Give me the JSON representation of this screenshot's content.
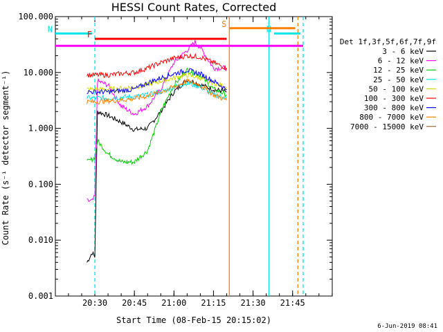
{
  "chart_data": {
    "type": "line",
    "title": "HESSI Count Rates, Corrected",
    "xlabel": "Start Time (08-Feb-15 20:15:02)",
    "ylabel": "Count Rate (s⁻¹ detector segment⁻¹)",
    "yscale": "log",
    "ylim": [
      0.001,
      100
    ],
    "xlim_minutes": [
      20.25,
      22.0
    ],
    "x_ticks": [
      "20:30",
      "20:45",
      "21:00",
      "21:15",
      "21:30",
      "21:45"
    ],
    "y_ticks": [
      "0.001",
      "0.010",
      "0.100",
      "1.000",
      "10.000",
      "100.000"
    ],
    "legend_title": "Det 1f,3f,5f,6f,7f,9f",
    "legend_position": "right",
    "timestamp": "6-Jun-2019 08:41",
    "series": [
      {
        "name": "3 - 6 keV",
        "color": "#000000",
        "x": [
          "20:27",
          "20:29",
          "20:30",
          "20:31",
          "20:35",
          "20:40",
          "20:45",
          "20:50",
          "20:55",
          "21:00",
          "21:05",
          "21:10",
          "21:15",
          "21:20"
        ],
        "values": [
          0.004,
          0.006,
          0.005,
          2.0,
          1.7,
          1.3,
          0.95,
          1.0,
          2.0,
          4.5,
          7.5,
          6.0,
          5.0,
          4.5
        ]
      },
      {
        "name": "6 - 12 keV",
        "color": "#ff00ff",
        "x": [
          "20:27",
          "20:29",
          "20:30",
          "20:31",
          "20:35",
          "20:40",
          "20:45",
          "20:50",
          "20:55",
          "21:00",
          "21:05",
          "21:08",
          "21:10",
          "21:15",
          "21:20"
        ],
        "values": [
          0.05,
          0.05,
          0.06,
          7.0,
          6.0,
          2.5,
          1.8,
          2.5,
          5.0,
          15.0,
          25.0,
          35.0,
          28.0,
          12.0,
          12.0
        ]
      },
      {
        "name": "12 - 25 keV",
        "color": "#00cc00",
        "x": [
          "20:27",
          "20:29",
          "20:30",
          "20:31",
          "20:35",
          "20:40",
          "20:45",
          "20:50",
          "20:53",
          "20:55",
          "21:00",
          "21:05",
          "21:10",
          "21:15",
          "21:20"
        ],
        "values": [
          0.25,
          0.28,
          0.3,
          0.6,
          0.35,
          0.25,
          0.25,
          0.4,
          1.0,
          2.0,
          6.0,
          11.0,
          9.0,
          5.0,
          4.0
        ]
      },
      {
        "name": "25 - 50 keV",
        "color": "#00e5e5",
        "x": [
          "20:27",
          "20:29",
          "20:30",
          "20:31",
          "20:35",
          "20:40",
          "20:45",
          "20:50",
          "20:55",
          "21:00",
          "21:05",
          "21:10",
          "21:15",
          "21:20"
        ],
        "values": [
          3.5,
          3.5,
          3.5,
          3.5,
          3.5,
          3.6,
          3.7,
          4.0,
          4.5,
          5.5,
          6.5,
          5.5,
          4.0,
          3.5
        ]
      },
      {
        "name": "50 - 100 keV",
        "color": "#d8d800",
        "x": [
          "20:27",
          "20:29",
          "20:30",
          "20:31",
          "20:35",
          "20:40",
          "20:45",
          "20:50",
          "20:55",
          "21:00",
          "21:05",
          "21:10",
          "21:15",
          "21:20"
        ],
        "values": [
          5.0,
          5.0,
          5.0,
          5.0,
          5.0,
          5.2,
          5.5,
          6.0,
          7.0,
          8.0,
          9.0,
          8.0,
          6.5,
          5.5
        ]
      },
      {
        "name": "100 - 300 keV",
        "color": "#ff0000",
        "x": [
          "20:27",
          "20:29",
          "20:30",
          "20:31",
          "20:35",
          "20:40",
          "20:45",
          "20:50",
          "20:55",
          "21:00",
          "21:05",
          "21:10",
          "21:15",
          "21:20"
        ],
        "values": [
          9.0,
          9.0,
          9.0,
          9.0,
          9.0,
          9.5,
          10.0,
          12.0,
          15.0,
          18.0,
          20.0,
          19.0,
          15.0,
          12.0
        ]
      },
      {
        "name": "300 - 800 keV",
        "color": "#0000ff",
        "x": [
          "20:27",
          "20:29",
          "20:30",
          "20:31",
          "20:35",
          "20:40",
          "20:45",
          "20:50",
          "20:55",
          "21:00",
          "21:05",
          "21:10",
          "21:15",
          "21:20"
        ],
        "values": [
          4.5,
          4.5,
          4.5,
          4.5,
          4.5,
          4.7,
          5.0,
          6.5,
          8.0,
          9.5,
          11.0,
          9.5,
          7.0,
          5.0
        ]
      },
      {
        "name": "800 - 7000 keV",
        "color": "#ff8000",
        "x": [
          "20:27",
          "20:29",
          "20:30",
          "20:31",
          "20:35",
          "20:40",
          "20:45",
          "20:50",
          "20:55",
          "21:00",
          "21:05",
          "21:10",
          "21:15",
          "21:20"
        ],
        "values": [
          3.0,
          3.0,
          3.0,
          3.0,
          3.1,
          3.2,
          3.4,
          3.8,
          4.5,
          5.5,
          7.0,
          6.0,
          4.0,
          3.2
        ]
      },
      {
        "name": "7000 - 15000 keV",
        "color": "#996633",
        "x": [],
        "values": []
      }
    ],
    "attenuator_bars": [
      {
        "label": "N",
        "color": "#00e5e5",
        "from": "20:15",
        "to": "20:29",
        "value": 50
      },
      {
        "label": "N",
        "color": "#00e5e5",
        "from": "21:38",
        "to": "21:48",
        "value": 50
      },
      {
        "label": "F",
        "color": "#ff0000",
        "from": "20:30",
        "to": "21:20",
        "value": 40
      },
      {
        "label": "S",
        "color": "#ff8000",
        "from": "21:21",
        "to": "21:46",
        "value": 62
      },
      {
        "label": "",
        "color": "#ff00ff",
        "from": "20:15",
        "to": "21:49",
        "value": 30
      }
    ],
    "vertical_markers": [
      {
        "time": "20:30",
        "color": "#00e5e5",
        "style": "dashed"
      },
      {
        "time": "21:21",
        "color": "#ff8000",
        "style": "solid"
      },
      {
        "time": "21:36",
        "color": "#00e5e5",
        "style": "solid"
      },
      {
        "time": "21:47",
        "color": "#ff8000",
        "style": "dashed"
      },
      {
        "time": "21:49",
        "color": "#00e5e5",
        "style": "dashed"
      }
    ]
  }
}
